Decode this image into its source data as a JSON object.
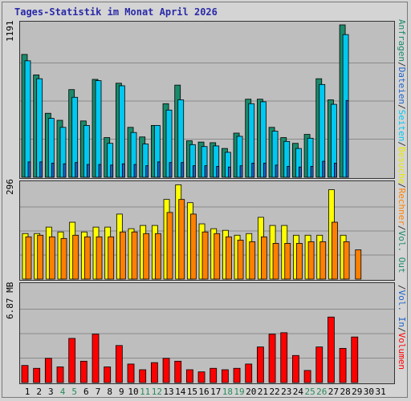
{
  "title": "Tages-Statistik im Monat April 2026",
  "chart_data": [
    {
      "type": "bar",
      "name": "Anfragen/Dateien/Seiten",
      "y_max_label": "1191",
      "ylim": [
        0,
        1191
      ],
      "series": [
        {
          "name": "Anfragen",
          "color": "#1a8a6a",
          "values": [
            960,
            800,
            500,
            445,
            685,
            440,
            765,
            310,
            735,
            390,
            315,
            405,
            575,
            720,
            285,
            275,
            270,
            225,
            345,
            610,
            610,
            390,
            310,
            265,
            335,
            770,
            605,
            1191,
            0,
            0,
            0
          ]
        },
        {
          "name": "Dateien",
          "color": "#00c8f0",
          "values": [
            910,
            770,
            460,
            390,
            625,
            405,
            755,
            265,
            715,
            350,
            260,
            405,
            525,
            605,
            255,
            240,
            245,
            195,
            320,
            575,
            590,
            360,
            280,
            225,
            305,
            725,
            570,
            1115,
            0,
            0,
            0
          ]
        },
        {
          "name": "Seiten",
          "color": "#1e64c8",
          "values": [
            120,
            120,
            110,
            105,
            115,
            100,
            100,
            95,
            105,
            100,
            90,
            120,
            115,
            115,
            90,
            90,
            85,
            80,
            90,
            110,
            110,
            95,
            85,
            80,
            85,
            125,
            110,
            600,
            0,
            0,
            0
          ]
        }
      ]
    },
    {
      "type": "bar",
      "name": "Besuche/Rechner",
      "y_max_label": "296",
      "ylim": [
        0,
        296
      ],
      "series": [
        {
          "name": "Besuche",
          "color": "#ffff00",
          "values": [
            140,
            140,
            160,
            145,
            175,
            145,
            160,
            160,
            200,
            155,
            165,
            165,
            245,
            290,
            235,
            170,
            155,
            150,
            135,
            140,
            190,
            165,
            165,
            135,
            135,
            135,
            275,
            135,
            0,
            0,
            0
          ]
        },
        {
          "name": "Rechner",
          "color": "#ff8000",
          "values": [
            130,
            135,
            130,
            125,
            135,
            130,
            130,
            130,
            145,
            145,
            140,
            140,
            205,
            245,
            200,
            145,
            140,
            130,
            120,
            115,
            130,
            110,
            110,
            110,
            115,
            115,
            175,
            115,
            90,
            0,
            0
          ]
        }
      ]
    },
    {
      "type": "bar",
      "name": "Volumen",
      "y_max_label": "6.87 MB",
      "ylim": [
        0,
        6.87
      ],
      "series": [
        {
          "name": "Volumen",
          "color": "#ff0000",
          "values": [
            1.2,
            1.0,
            1.7,
            1.1,
            3.1,
            1.5,
            3.4,
            1.1,
            2.6,
            1.3,
            0.9,
            1.4,
            1.7,
            1.5,
            0.9,
            0.75,
            1.0,
            0.9,
            1.0,
            1.3,
            2.5,
            3.4,
            3.5,
            1.9,
            0.85,
            2.5,
            4.6,
            2.4,
            3.2,
            0,
            0
          ]
        }
      ]
    }
  ],
  "x_labels": [
    {
      "day": "1",
      "color": "#000000"
    },
    {
      "day": "2",
      "color": "#000000"
    },
    {
      "day": "3",
      "color": "#000000"
    },
    {
      "day": "4",
      "color": "#2a8a5a"
    },
    {
      "day": "5",
      "color": "#2a8a5a"
    },
    {
      "day": "6",
      "color": "#000000"
    },
    {
      "day": "7",
      "color": "#000000"
    },
    {
      "day": "8",
      "color": "#000000"
    },
    {
      "day": "9",
      "color": "#000000"
    },
    {
      "day": "10",
      "color": "#000000"
    },
    {
      "day": "11",
      "color": "#2a8a5a"
    },
    {
      "day": "12",
      "color": "#2a8a5a"
    },
    {
      "day": "13",
      "color": "#000000"
    },
    {
      "day": "14",
      "color": "#000000"
    },
    {
      "day": "15",
      "color": "#000000"
    },
    {
      "day": "16",
      "color": "#000000"
    },
    {
      "day": "17",
      "color": "#000000"
    },
    {
      "day": "18",
      "color": "#2a8a5a"
    },
    {
      "day": "19",
      "color": "#2a8a5a"
    },
    {
      "day": "20",
      "color": "#000000"
    },
    {
      "day": "21",
      "color": "#000000"
    },
    {
      "day": "22",
      "color": "#000000"
    },
    {
      "day": "23",
      "color": "#000000"
    },
    {
      "day": "24",
      "color": "#000000"
    },
    {
      "day": "25",
      "color": "#2a8a5a"
    },
    {
      "day": "26",
      "color": "#2a8a5a"
    },
    {
      "day": "27",
      "color": "#000000"
    },
    {
      "day": "28",
      "color": "#000000"
    },
    {
      "day": "29",
      "color": "#000000"
    },
    {
      "day": "30",
      "color": "#000000"
    },
    {
      "day": "31",
      "color": "#000000"
    }
  ],
  "right_labels": {
    "top": [
      {
        "text": "Anfragen",
        "color": "#1a8a6a"
      },
      {
        "text": "/",
        "color": "#333333"
      },
      {
        "text": "Dateien",
        "color": "#1e64c8"
      },
      {
        "text": "/",
        "color": "#333333"
      },
      {
        "text": "Seiten",
        "color": "#00c8f0"
      },
      {
        "text": "/",
        "color": "#333333"
      },
      {
        "text": "Besuche",
        "color": "#e8e800"
      }
    ],
    "middle": [
      {
        "text": "/",
        "color": "#333333"
      },
      {
        "text": "Rechner",
        "color": "#ff8000"
      },
      {
        "text": "/",
        "color": "#333333"
      },
      {
        "text": "Vol. Out",
        "color": "#1a8a6a"
      }
    ],
    "bottom": [
      {
        "text": "/",
        "color": "#333333"
      },
      {
        "text": "Vol. In",
        "color": "#1e64c8"
      },
      {
        "text": "/",
        "color": "#333333"
      },
      {
        "text": "Volumen",
        "color": "#ff0000"
      }
    ]
  }
}
